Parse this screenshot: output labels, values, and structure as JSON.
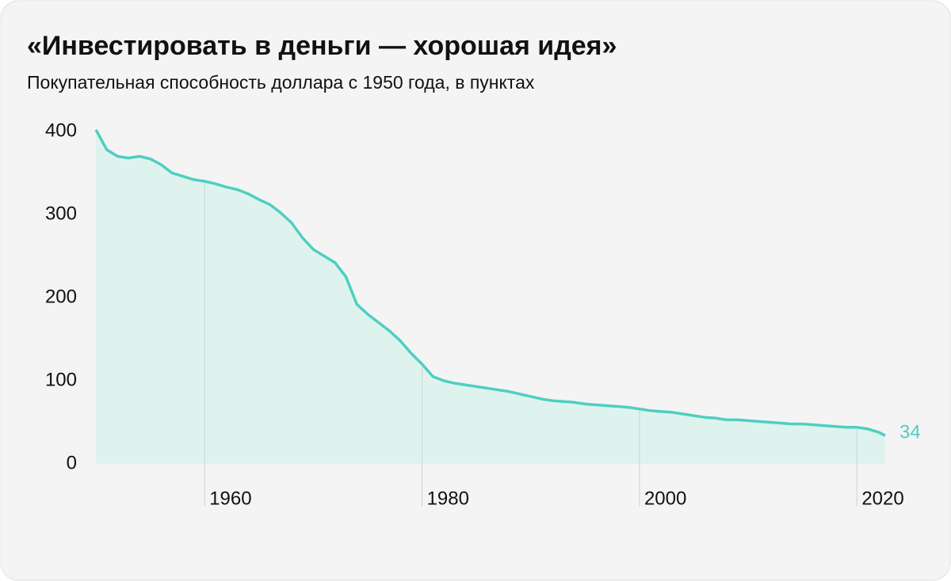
{
  "chart_data": {
    "type": "area",
    "title": "«Инвестировать в деньги — хорошая идея»",
    "subtitle": "Покупательная способность доллара с 1950 года, в пунктах",
    "x": [
      1950,
      1951,
      1952,
      1953,
      1954,
      1955,
      1956,
      1957,
      1958,
      1959,
      1960,
      1961,
      1962,
      1963,
      1964,
      1965,
      1966,
      1967,
      1968,
      1969,
      1970,
      1971,
      1972,
      1973,
      1974,
      1975,
      1976,
      1977,
      1978,
      1979,
      1980,
      1981,
      1982,
      1983,
      1984,
      1985,
      1986,
      1987,
      1988,
      1989,
      1990,
      1991,
      1992,
      1993,
      1994,
      1995,
      1996,
      1997,
      1998,
      1999,
      2000,
      2001,
      2002,
      2003,
      2004,
      2005,
      2006,
      2007,
      2008,
      2009,
      2010,
      2011,
      2012,
      2013,
      2014,
      2015,
      2016,
      2017,
      2018,
      2019,
      2020,
      2021,
      2022,
      2022.6
    ],
    "series": [
      {
        "name": "Покупательная способность доллара",
        "color": "#4fcfbf",
        "values": [
          402,
          378,
          370,
          368,
          370,
          367,
          360,
          350,
          346,
          342,
          340,
          337,
          333,
          330,
          325,
          318,
          312,
          302,
          290,
          272,
          258,
          250,
          242,
          225,
          192,
          180,
          170,
          160,
          148,
          133,
          120,
          105,
          100,
          97,
          95,
          93,
          91,
          89,
          87,
          84,
          81,
          78,
          76,
          75,
          74,
          72,
          71,
          70,
          69,
          68,
          66,
          64,
          63,
          62,
          60,
          58,
          56,
          55,
          53,
          53,
          52,
          51,
          50,
          49,
          48,
          48,
          47,
          46,
          45,
          44,
          44,
          42,
          38,
          34
        ]
      }
    ],
    "fill_color": "#dff3ee",
    "xlim": [
      1950,
      2022.6
    ],
    "xticks": [
      1960,
      1980,
      2000,
      2020
    ],
    "ylim": [
      0,
      400
    ],
    "yticks": [
      0,
      100,
      200,
      300,
      400
    ],
    "grid": true
  }
}
